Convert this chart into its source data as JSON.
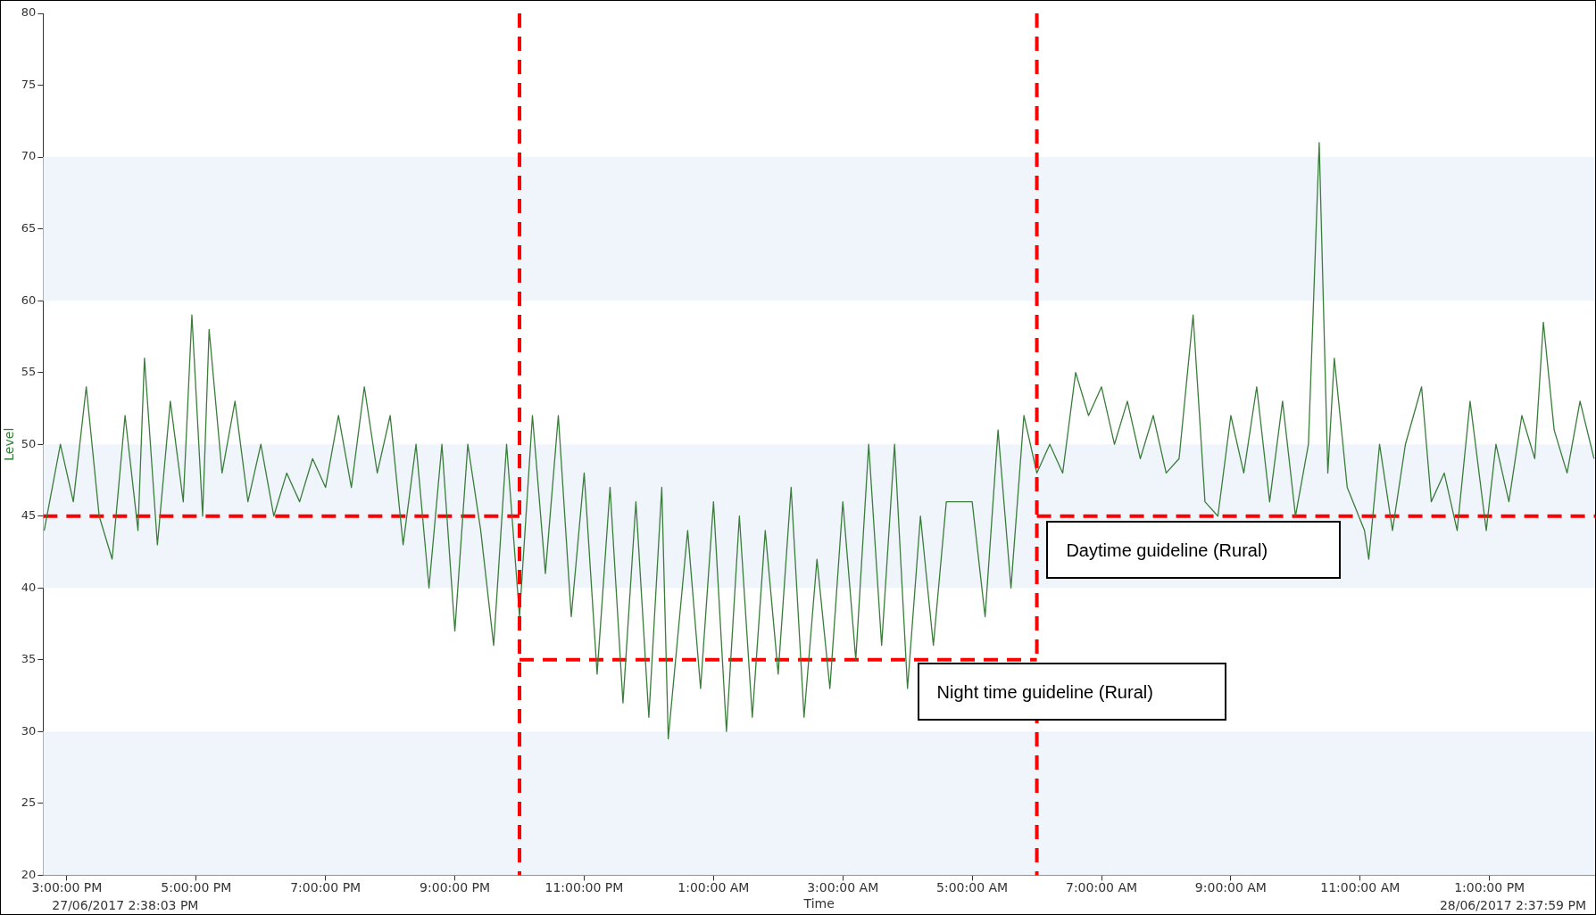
{
  "chart_data": {
    "type": "line",
    "xlabel": "Time",
    "ylabel": "Level",
    "xlim": [
      "2017-06-27T14:38",
      "2017-06-28T14:38"
    ],
    "ylim": [
      20,
      80
    ],
    "xticks": [
      {
        "value": "2017-06-27T15:00",
        "label": "3:00:00 PM"
      },
      {
        "value": "2017-06-27T17:00",
        "label": "5:00:00 PM"
      },
      {
        "value": "2017-06-27T19:00",
        "label": "7:00:00 PM"
      },
      {
        "value": "2017-06-27T21:00",
        "label": "9:00:00 PM"
      },
      {
        "value": "2017-06-27T23:00",
        "label": "11:00:00 PM"
      },
      {
        "value": "2017-06-28T01:00",
        "label": "1:00:00 AM"
      },
      {
        "value": "2017-06-28T03:00",
        "label": "3:00:00 AM"
      },
      {
        "value": "2017-06-28T05:00",
        "label": "5:00:00 AM"
      },
      {
        "value": "2017-06-28T07:00",
        "label": "7:00:00 AM"
      },
      {
        "value": "2017-06-28T09:00",
        "label": "9:00:00 AM"
      },
      {
        "value": "2017-06-28T11:00",
        "label": "11:00:00 AM"
      },
      {
        "value": "2017-06-28T13:00",
        "label": "1:00:00 PM"
      }
    ],
    "yticks": [
      20,
      25,
      30,
      35,
      40,
      45,
      50,
      55,
      60,
      65,
      70,
      75,
      80
    ],
    "marker": "none",
    "legend": false,
    "series": [
      {
        "color": "#3a7d3a",
        "line_style": "solid",
        "x": [
          "2017-06-27T14:39",
          "2017-06-27T14:54",
          "2017-06-27T15:06",
          "2017-06-27T15:18",
          "2017-06-27T15:30",
          "2017-06-27T15:42",
          "2017-06-27T15:54",
          "2017-06-27T16:06",
          "2017-06-27T16:12",
          "2017-06-27T16:24",
          "2017-06-27T16:36",
          "2017-06-27T16:48",
          "2017-06-27T16:56",
          "2017-06-27T17:06",
          "2017-06-27T17:12",
          "2017-06-27T17:24",
          "2017-06-27T17:36",
          "2017-06-27T17:48",
          "2017-06-27T18:00",
          "2017-06-27T18:12",
          "2017-06-27T18:24",
          "2017-06-27T18:36",
          "2017-06-27T18:48",
          "2017-06-27T19:00",
          "2017-06-27T19:12",
          "2017-06-27T19:24",
          "2017-06-27T19:36",
          "2017-06-27T19:48",
          "2017-06-27T20:00",
          "2017-06-27T20:12",
          "2017-06-27T20:24",
          "2017-06-27T20:36",
          "2017-06-27T20:48",
          "2017-06-27T21:00",
          "2017-06-27T21:12",
          "2017-06-27T21:24",
          "2017-06-27T21:36",
          "2017-06-27T21:48",
          "2017-06-27T22:00",
          "2017-06-27T22:12",
          "2017-06-27T22:24",
          "2017-06-27T22:36",
          "2017-06-27T22:48",
          "2017-06-27T23:00",
          "2017-06-27T23:12",
          "2017-06-27T23:24",
          "2017-06-27T23:36",
          "2017-06-27T23:48",
          "2017-06-28T00:00",
          "2017-06-28T00:12",
          "2017-06-28T00:18",
          "2017-06-28T00:36",
          "2017-06-28T00:48",
          "2017-06-28T01:00",
          "2017-06-28T01:12",
          "2017-06-28T01:24",
          "2017-06-28T01:36",
          "2017-06-28T01:48",
          "2017-06-28T02:00",
          "2017-06-28T02:12",
          "2017-06-28T02:24",
          "2017-06-28T02:36",
          "2017-06-28T02:48",
          "2017-06-28T03:00",
          "2017-06-28T03:12",
          "2017-06-28T03:24",
          "2017-06-28T03:36",
          "2017-06-28T03:48",
          "2017-06-28T04:00",
          "2017-06-28T04:12",
          "2017-06-28T04:24",
          "2017-06-28T04:36",
          "2017-06-28T05:00",
          "2017-06-28T05:12",
          "2017-06-28T05:24",
          "2017-06-28T05:36",
          "2017-06-28T05:48",
          "2017-06-28T06:00",
          "2017-06-28T06:12",
          "2017-06-28T06:24",
          "2017-06-28T06:36",
          "2017-06-28T06:48",
          "2017-06-28T07:00",
          "2017-06-28T07:12",
          "2017-06-28T07:24",
          "2017-06-28T07:36",
          "2017-06-28T07:48",
          "2017-06-28T08:00",
          "2017-06-28T08:12",
          "2017-06-28T08:25",
          "2017-06-28T08:36",
          "2017-06-28T08:48",
          "2017-06-28T09:00",
          "2017-06-28T09:12",
          "2017-06-28T09:24",
          "2017-06-28T09:36",
          "2017-06-28T09:48",
          "2017-06-28T10:00",
          "2017-06-28T10:12",
          "2017-06-28T10:22",
          "2017-06-28T10:30",
          "2017-06-28T10:36",
          "2017-06-28T10:48",
          "2017-06-28T11:04",
          "2017-06-28T11:08",
          "2017-06-28T11:18",
          "2017-06-28T11:30",
          "2017-06-28T11:42",
          "2017-06-28T11:57",
          "2017-06-28T12:06",
          "2017-06-28T12:18",
          "2017-06-28T12:30",
          "2017-06-28T12:42",
          "2017-06-28T12:57",
          "2017-06-28T13:06",
          "2017-06-28T13:18",
          "2017-06-28T13:30",
          "2017-06-28T13:42",
          "2017-06-28T13:50",
          "2017-06-28T14:00",
          "2017-06-28T14:12",
          "2017-06-28T14:24",
          "2017-06-28T14:37"
        ],
        "values": [
          44,
          50,
          46,
          54,
          45,
          42,
          52,
          44,
          56,
          43,
          53,
          46,
          59,
          45,
          58,
          48,
          53,
          46,
          50,
          45,
          48,
          46,
          49,
          47,
          52,
          47,
          54,
          48,
          52,
          43,
          50,
          40,
          50,
          37,
          50,
          44,
          36,
          50,
          38,
          52,
          41,
          52,
          38,
          48,
          34,
          47,
          32,
          46,
          31,
          47,
          29.5,
          44,
          33,
          46,
          30,
          45,
          31,
          44,
          34,
          47,
          31,
          42,
          33,
          46,
          35,
          50,
          36,
          50,
          33,
          45,
          36,
          46,
          46,
          38,
          51,
          40,
          52,
          48,
          50,
          48,
          55,
          52,
          54,
          50,
          53,
          49,
          52,
          48,
          49,
          59,
          46,
          45,
          52,
          48,
          54,
          46,
          53,
          45,
          50,
          71,
          48,
          56,
          47,
          44,
          42,
          50,
          44,
          50,
          54,
          46,
          48,
          44,
          53,
          44,
          50,
          46,
          52,
          49,
          58.5,
          51,
          48,
          53,
          49
        ]
      },
      {
        "color": "#ff0000",
        "line_style": "dashed",
        "x": [
          "2017-06-27T14:38",
          "2017-06-27T22:00"
        ],
        "values": [
          45,
          45
        ]
      },
      {
        "color": "#ff0000",
        "line_style": "dashed",
        "x": [
          "2017-06-27T22:00",
          "2017-06-28T06:00"
        ],
        "values": [
          35,
          35
        ]
      },
      {
        "color": "#ff0000",
        "line_style": "dashed",
        "x": [
          "2017-06-28T06:00",
          "2017-06-28T14:38"
        ],
        "values": [
          45,
          45
        ]
      }
    ],
    "ref_lines": [
      {
        "axis": "x",
        "value": "2017-06-27T22:00",
        "color": "#ff0000",
        "line_style": "dashed"
      },
      {
        "axis": "x",
        "value": "2017-06-28T06:00",
        "color": "#ff0000",
        "line_style": "dashed"
      }
    ],
    "bands": [
      {
        "axis": "y",
        "from": 20,
        "to": 30,
        "color": "#f0f5fc"
      },
      {
        "axis": "y",
        "from": 40,
        "to": 50,
        "color": "#f0f5fc"
      },
      {
        "axis": "y",
        "from": 60,
        "to": 70,
        "color": "#f0f5fc"
      }
    ],
    "annotations": [
      {
        "text": "Daytime guideline (Rural)",
        "x": "2017-06-28T06:09",
        "y": 44.7
      },
      {
        "text": "Night time guideline (Rural)",
        "x": "2017-06-28T04:09",
        "y": 34.8
      },
      "27/06/2017 2:38:03 PM",
      "28/06/2017 2:37:59 PM"
    ]
  }
}
